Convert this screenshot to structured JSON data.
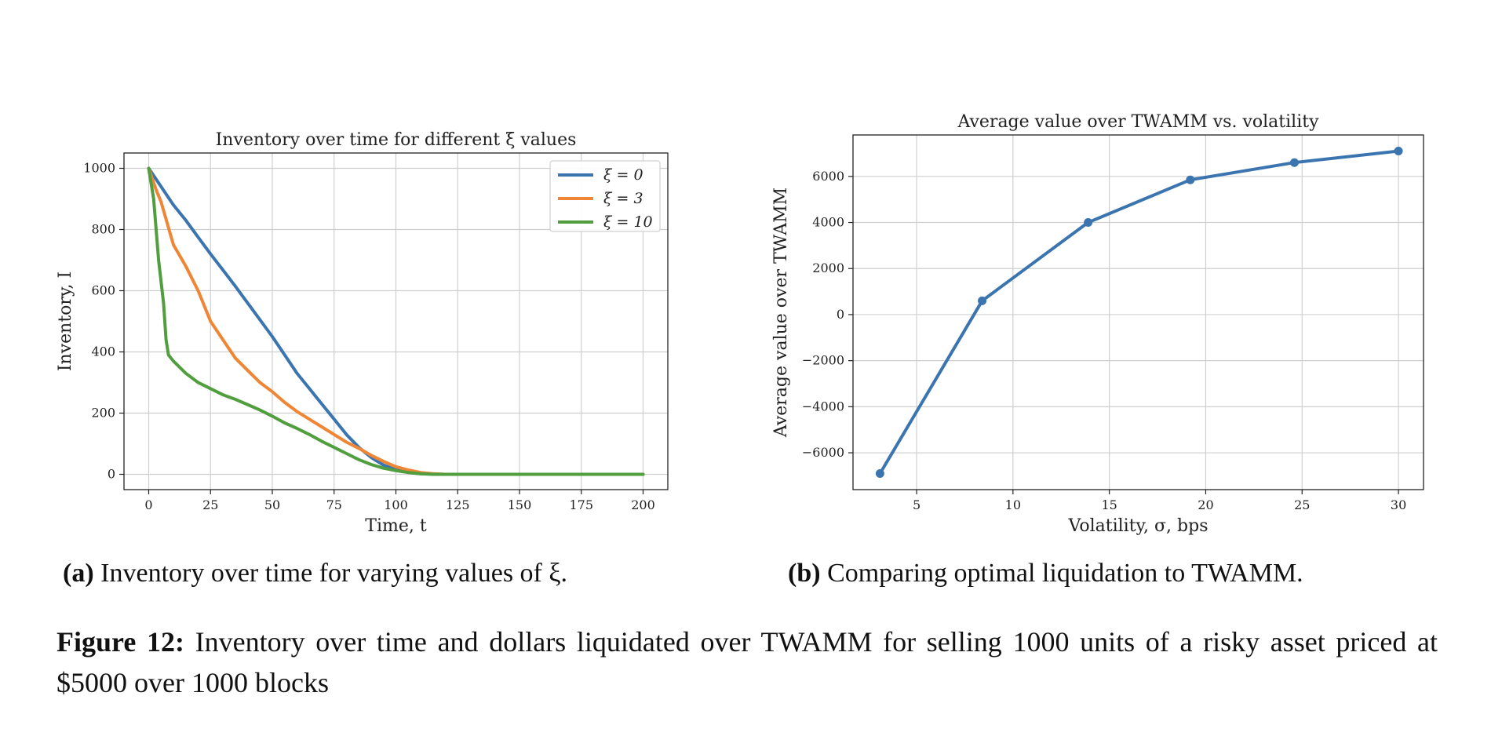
{
  "charts": {
    "a": {
      "title": "Inventory over time for different ξ values",
      "xlabel": "Time, t",
      "ylabel": "Inventory, I",
      "subcaption_tag": "(a)",
      "subcaption": "Inventory over time for varying values of ξ."
    },
    "b": {
      "title": "Average value over TWAMM vs. volatility",
      "xlabel": "Volatility, σ, bps",
      "ylabel": "Average value over TWAMM",
      "subcaption_tag": "(b)",
      "subcaption": "Comparing optimal liquidation to TWAMM."
    }
  },
  "figure_caption": {
    "tag": "Figure 12:",
    "text": "Inventory over time and dollars liquidated over TWAMM for selling 1000 units of a risky asset priced at $5000 over 1000 blocks"
  },
  "colors": {
    "blue": "#3b75af",
    "orange": "#ef8636",
    "green": "#519e3e"
  },
  "chart_data": [
    {
      "type": "line",
      "title": "Inventory over time for different ξ values",
      "xlabel": "Time, t",
      "ylabel": "Inventory, I",
      "xlim": [
        -10,
        210
      ],
      "ylim": [
        -50,
        1050
      ],
      "xticks": [
        0,
        25,
        50,
        75,
        100,
        125,
        150,
        175,
        200
      ],
      "yticks": [
        0,
        200,
        400,
        600,
        800,
        1000
      ],
      "grid": true,
      "legend": "top-right",
      "series": [
        {
          "name": "ξ = 0",
          "color": "#3b75af",
          "points": [
            [
              0,
              1000
            ],
            [
              5,
              940
            ],
            [
              10,
              880
            ],
            [
              15,
              830
            ],
            [
              20,
              775
            ],
            [
              25,
              720
            ],
            [
              30,
              668
            ],
            [
              35,
              615
            ],
            [
              40,
              560
            ],
            [
              45,
              505
            ],
            [
              50,
              450
            ],
            [
              55,
              390
            ],
            [
              60,
              330
            ],
            [
              65,
              280
            ],
            [
              70,
              230
            ],
            [
              75,
              180
            ],
            [
              80,
              130
            ],
            [
              85,
              88
            ],
            [
              90,
              55
            ],
            [
              95,
              30
            ],
            [
              100,
              15
            ],
            [
              105,
              6
            ],
            [
              110,
              2
            ],
            [
              115,
              1
            ],
            [
              120,
              0
            ],
            [
              200,
              0
            ]
          ]
        },
        {
          "name": "ξ = 3",
          "color": "#ef8636",
          "points": [
            [
              0,
              1000
            ],
            [
              3,
              930
            ],
            [
              5,
              890
            ],
            [
              10,
              750
            ],
            [
              15,
              680
            ],
            [
              20,
              600
            ],
            [
              25,
              500
            ],
            [
              30,
              440
            ],
            [
              35,
              380
            ],
            [
              40,
              340
            ],
            [
              45,
              300
            ],
            [
              50,
              270
            ],
            [
              55,
              235
            ],
            [
              60,
              205
            ],
            [
              65,
              180
            ],
            [
              70,
              155
            ],
            [
              75,
              130
            ],
            [
              80,
              105
            ],
            [
              85,
              85
            ],
            [
              90,
              62
            ],
            [
              95,
              42
            ],
            [
              100,
              25
            ],
            [
              105,
              14
            ],
            [
              110,
              6
            ],
            [
              115,
              2
            ],
            [
              120,
              0
            ],
            [
              200,
              0
            ]
          ]
        },
        {
          "name": "ξ = 10",
          "color": "#519e3e",
          "points": [
            [
              0,
              1000
            ],
            [
              2,
              900
            ],
            [
              4,
              700
            ],
            [
              6,
              560
            ],
            [
              7,
              440
            ],
            [
              8,
              390
            ],
            [
              10,
              370
            ],
            [
              15,
              330
            ],
            [
              20,
              300
            ],
            [
              25,
              280
            ],
            [
              30,
              260
            ],
            [
              35,
              245
            ],
            [
              40,
              228
            ],
            [
              45,
              210
            ],
            [
              50,
              190
            ],
            [
              55,
              168
            ],
            [
              60,
              150
            ],
            [
              65,
              130
            ],
            [
              70,
              108
            ],
            [
              75,
              88
            ],
            [
              80,
              68
            ],
            [
              85,
              48
            ],
            [
              90,
              32
            ],
            [
              95,
              20
            ],
            [
              100,
              12
            ],
            [
              105,
              6
            ],
            [
              110,
              2
            ],
            [
              115,
              0
            ],
            [
              200,
              0
            ]
          ]
        }
      ]
    },
    {
      "type": "line",
      "title": "Average value over TWAMM vs. volatility",
      "xlabel": "Volatility, σ, bps",
      "ylabel": "Average value over TWAMM",
      "xlim": [
        1.7,
        31.3
      ],
      "ylim": [
        -7600,
        7800
      ],
      "xticks": [
        5,
        10,
        15,
        20,
        25,
        30
      ],
      "yticks": [
        -6000,
        -4000,
        -2000,
        0,
        2000,
        4000,
        6000
      ],
      "grid": true,
      "markers": true,
      "series": [
        {
          "color": "#3b75af",
          "points": [
            [
              3.1,
              -6900
            ],
            [
              8.4,
              600
            ],
            [
              13.9,
              4000
            ],
            [
              19.2,
              5850
            ],
            [
              24.6,
              6600
            ],
            [
              30,
              7100
            ]
          ]
        }
      ]
    }
  ]
}
